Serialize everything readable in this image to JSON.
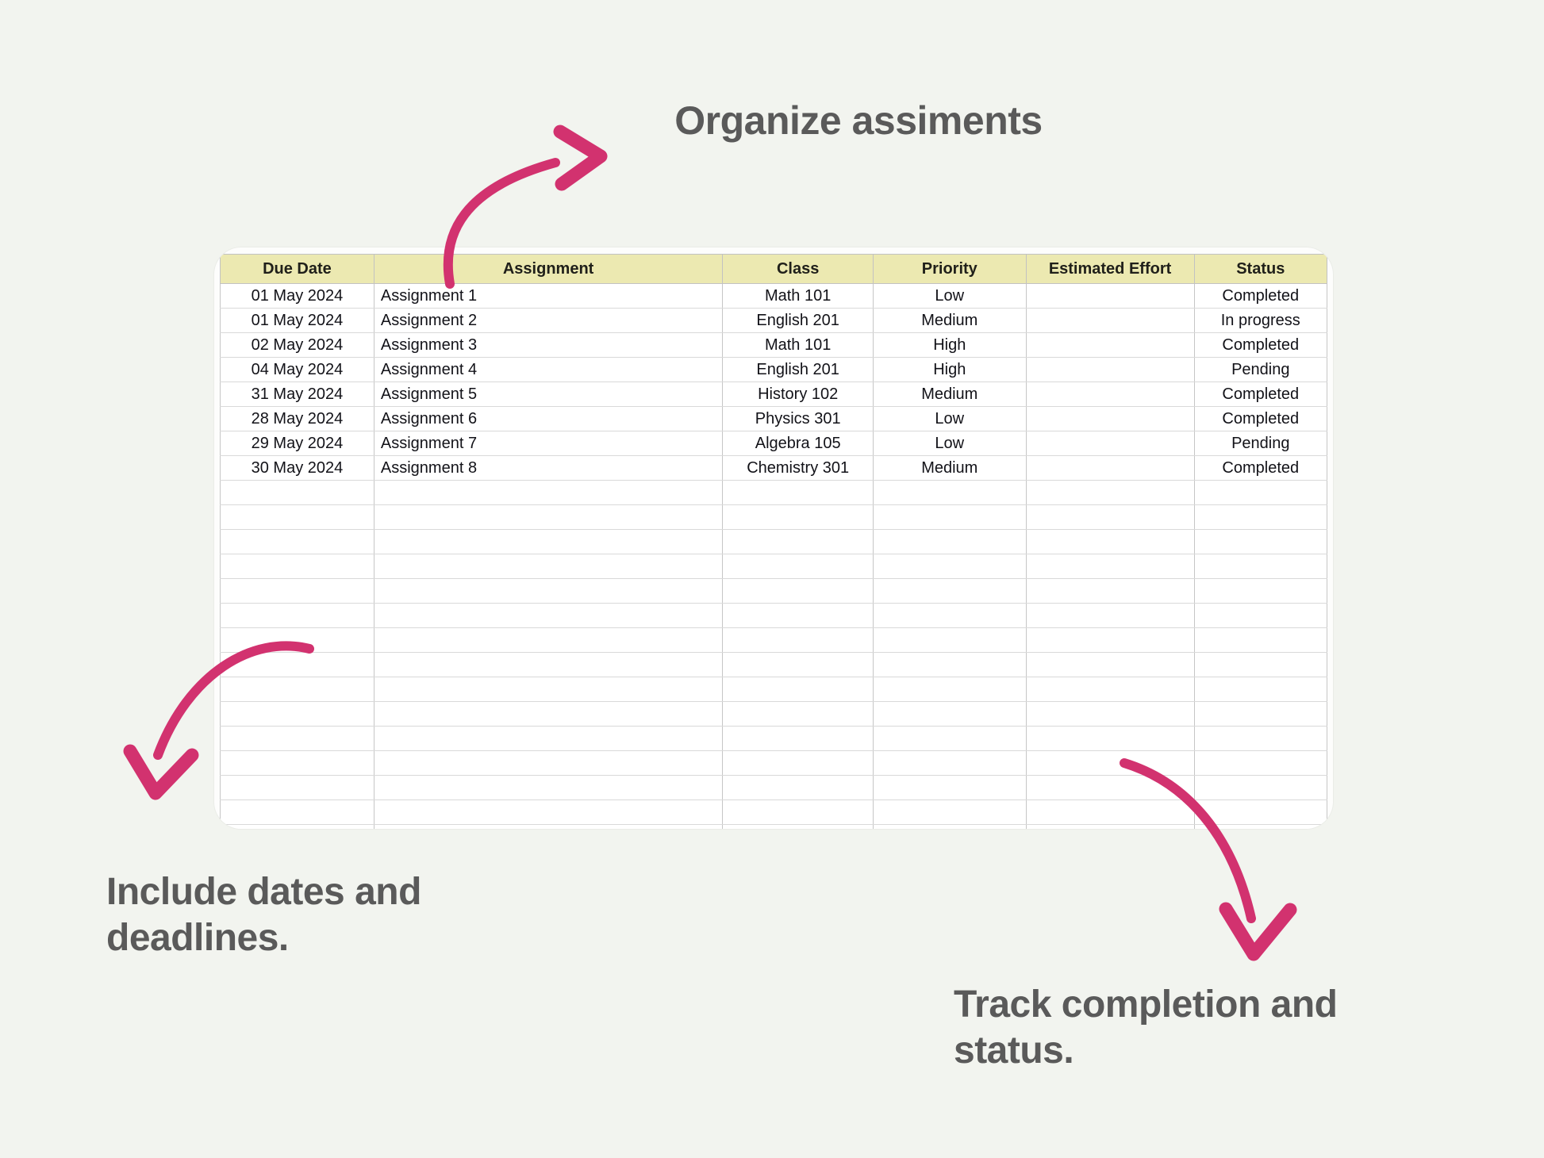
{
  "colors": {
    "accent_pink": "#d2326f",
    "background": "#f2f4ef",
    "header_fill": "#ece9b1"
  },
  "annotations": {
    "title": "Organize assiments",
    "dates_note": "Include dates and\ndeadlines.",
    "status_note": "Track completion and\nstatus."
  },
  "table": {
    "columns": [
      {
        "label": "Due Date",
        "align": "center"
      },
      {
        "label": "Assignment",
        "align": "left"
      },
      {
        "label": "Class",
        "align": "center"
      },
      {
        "label": "Priority",
        "align": "center"
      },
      {
        "label": "Estimated Effort",
        "align": "center"
      },
      {
        "label": "Status",
        "align": "center"
      }
    ],
    "rows": [
      [
        "01 May 2024",
        "Assignment 1",
        "Math 101",
        "Low",
        "",
        "Completed"
      ],
      [
        "01 May 2024",
        "Assignment 2",
        "English 201",
        "Medium",
        "",
        "In progress"
      ],
      [
        "02 May 2024",
        "Assignment 3",
        "Math 101",
        "High",
        "",
        "Completed"
      ],
      [
        "04 May 2024",
        "Assignment 4",
        "English 201",
        "High",
        "",
        "Pending"
      ],
      [
        "31 May 2024",
        "Assignment 5",
        "History 102",
        "Medium",
        "",
        "Completed"
      ],
      [
        "28 May 2024",
        "Assignment 6",
        "Physics 301",
        "Low",
        "",
        "Completed"
      ],
      [
        "29 May 2024",
        "Assignment 7",
        "Algebra 105",
        "Low",
        "",
        "Pending"
      ],
      [
        "30 May 2024",
        "Assignment 8",
        "Chemistry 301",
        "Medium",
        "",
        "Completed"
      ]
    ],
    "empty_row_count": 15
  }
}
